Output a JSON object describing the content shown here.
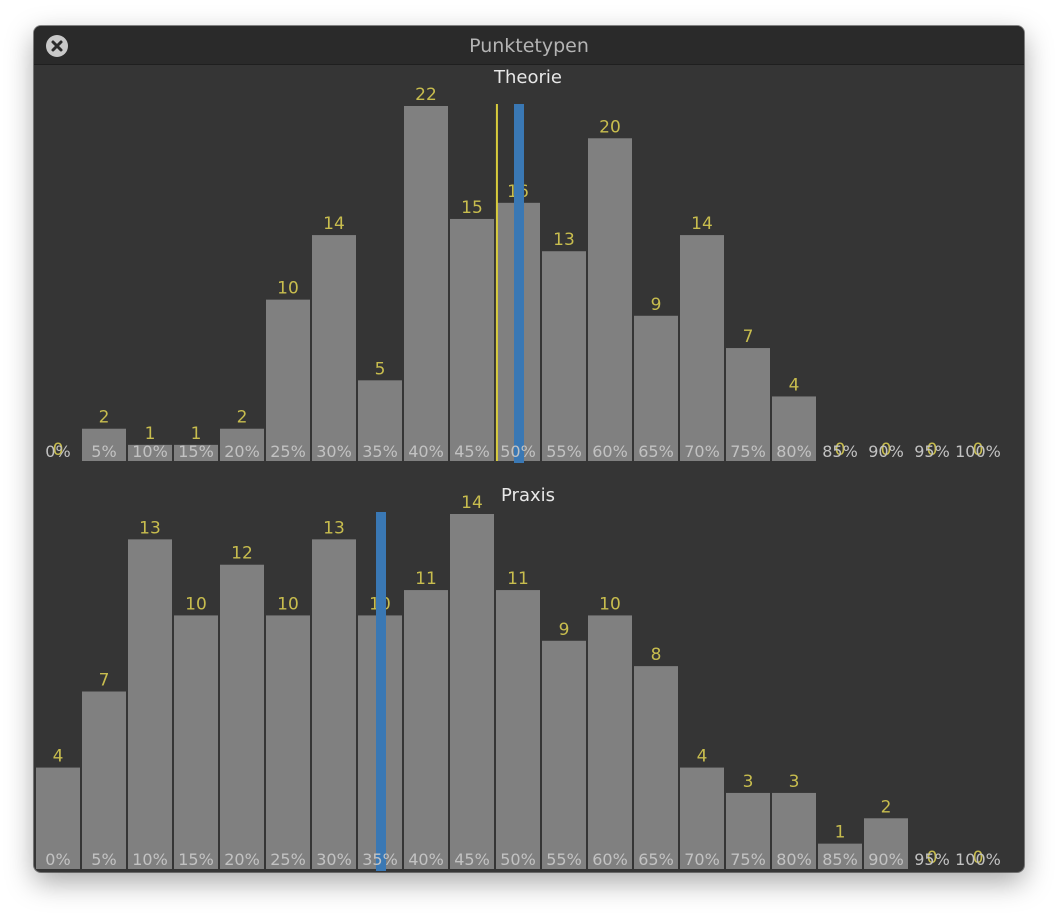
{
  "window": {
    "title": "Punktetypen",
    "close_icon": "close-icon"
  },
  "colors": {
    "background": "#353535",
    "bar": "#808080",
    "value_label": "#c8bd4e",
    "tick_label": "#c2c2c2",
    "blue_marker": "#3a78b4",
    "yellow_marker": "#d8cc3c"
  },
  "chart_data": [
    {
      "type": "bar",
      "title": "Theorie",
      "categories": [
        "0%",
        "5%",
        "10%",
        "15%",
        "20%",
        "25%",
        "30%",
        "35%",
        "40%",
        "45%",
        "50%",
        "55%",
        "60%",
        "65%",
        "70%",
        "75%",
        "80%",
        "85%",
        "90%",
        "95%",
        "100%"
      ],
      "values": [
        0,
        2,
        1,
        1,
        2,
        10,
        14,
        5,
        22,
        15,
        16,
        13,
        20,
        9,
        14,
        7,
        4,
        0,
        0,
        0,
        0
      ],
      "ylim": [
        0,
        22
      ],
      "markers": [
        {
          "kind": "yellow-line",
          "x": 47.6
        },
        {
          "kind": "blue-bar",
          "x": 50
        }
      ]
    },
    {
      "type": "bar",
      "title": "Praxis",
      "categories": [
        "0%",
        "5%",
        "10%",
        "15%",
        "20%",
        "25%",
        "30%",
        "35%",
        "40%",
        "45%",
        "50%",
        "55%",
        "60%",
        "65%",
        "70%",
        "75%",
        "80%",
        "85%",
        "90%",
        "95%",
        "100%"
      ],
      "values": [
        4,
        7,
        13,
        10,
        12,
        10,
        13,
        10,
        11,
        14,
        11,
        9,
        10,
        8,
        4,
        3,
        3,
        1,
        2,
        0,
        0
      ],
      "ylim": [
        0,
        14
      ],
      "markers": [
        {
          "kind": "blue-bar",
          "x": 35
        }
      ]
    }
  ]
}
